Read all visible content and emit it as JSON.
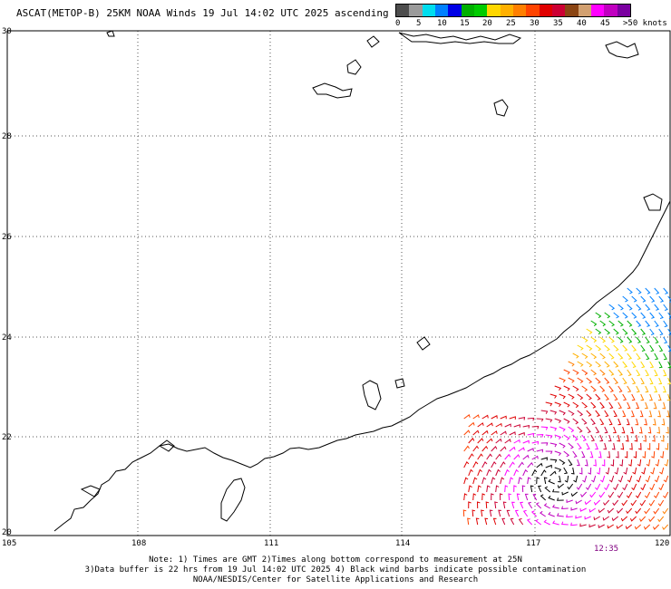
{
  "title": "ASCAT(METOP-B) 25KM NOAA Winds 19 Jul 14:02 UTC 2025 ascending",
  "legend": {
    "colors": [
      "#4d4d4d",
      "#9a9a9a",
      "#00ddee",
      "#0080ff",
      "#0000e6",
      "#00b000",
      "#00cc00",
      "#ffd700",
      "#ffb000",
      "#ff7f00",
      "#ff4400",
      "#e00000",
      "#cc0033",
      "#8b4513",
      "#d2a070",
      "#ff00ff",
      "#c000c0",
      "#7a00a0"
    ],
    "labels": [
      "0",
      "5",
      "10",
      "15",
      "20",
      "25",
      "30",
      "35",
      "40",
      "45",
      ">50 knots"
    ]
  },
  "axes": {
    "x_ticks": [
      "105",
      "108",
      "111",
      "114",
      "117",
      "120"
    ],
    "y_ticks": [
      "30",
      "28",
      "26",
      "24",
      "22",
      "20"
    ]
  },
  "timestamp": "12:35",
  "footer": {
    "line1": "Note: 1) Times are GMT 2)Times along bottom correspond to measurement at 25N",
    "line2": "3)Data buffer is 22 hrs from 19 Jul 14:02 UTC 2025 4) Black wind barbs indicate possible contamination",
    "line3": "NOAA/NESDIS/Center for Satellite Applications and Research"
  }
}
